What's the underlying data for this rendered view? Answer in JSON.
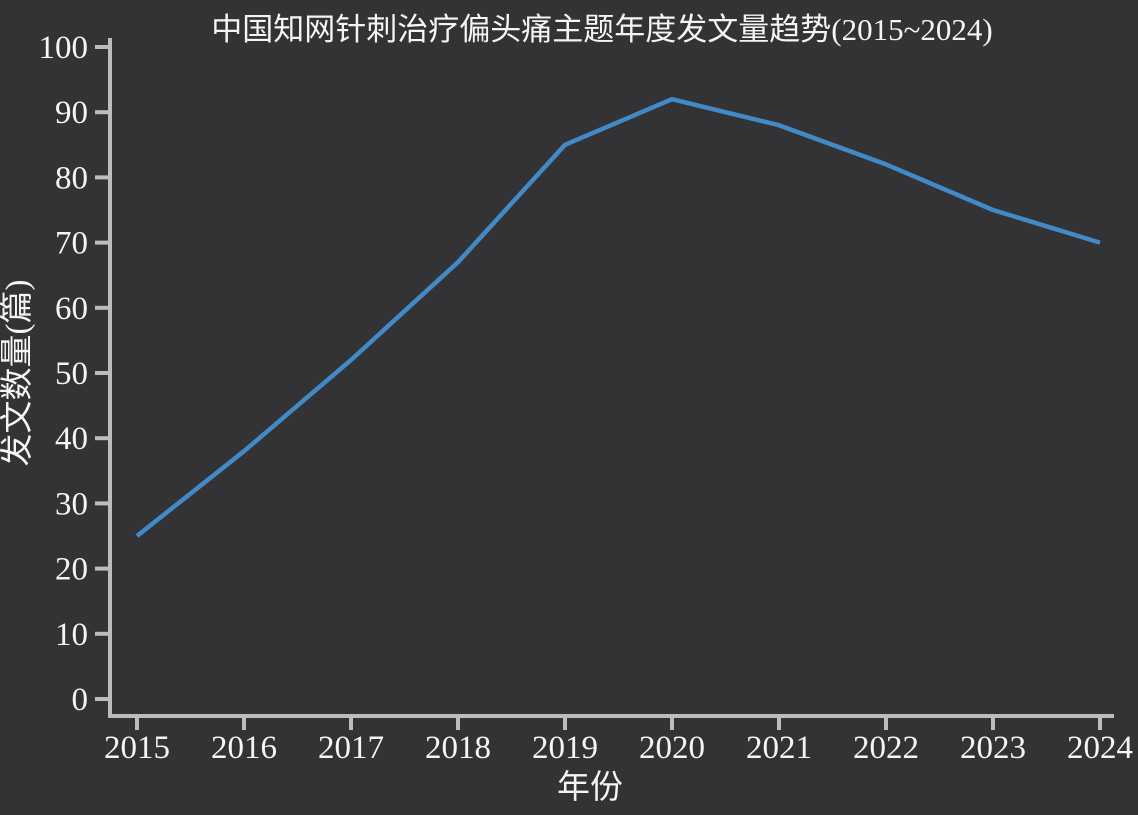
{
  "chart_data": {
    "type": "line",
    "title": "中国知网针刺治疗偏头痛主题年度发文量趋势(2015~2024)",
    "xlabel": "年份",
    "ylabel": "发文数量(篇)",
    "categories": [
      "2015",
      "2016",
      "2017",
      "2018",
      "2019",
      "2020",
      "2021",
      "2022",
      "2023",
      "2024"
    ],
    "values": [
      25,
      38,
      52,
      67,
      85,
      92,
      88,
      82,
      75,
      70
    ],
    "ylim": [
      0,
      100
    ],
    "ytick_step": 10,
    "ytick_labels": [
      "0",
      "10",
      "20",
      "30",
      "40",
      "50",
      "60",
      "70",
      "80",
      "90",
      "100"
    ],
    "grid": false,
    "legend_position": "none",
    "colors": {
      "background": "#333234",
      "line": "#4289c8",
      "axis": "#bdbdbd",
      "text": "#f5f5f5"
    }
  }
}
